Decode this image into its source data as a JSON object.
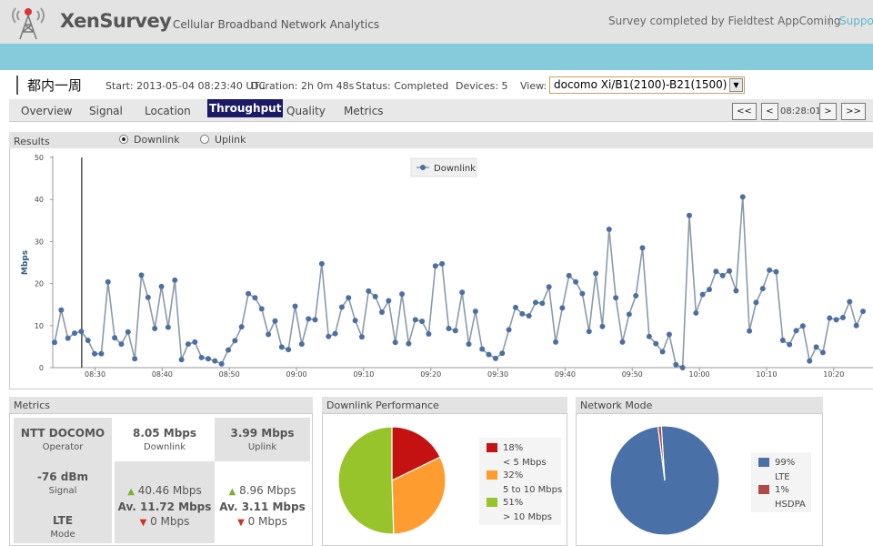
{
  "header": {
    "title": "XenSurvey",
    "subtitle": "Cellular Broadband Network Analytics",
    "survey_by": "Survey completed by Fieldtest AppComing",
    "support": "Support"
  },
  "info": {
    "survey_name": "都内一周",
    "start": "Start: 2013-05-04 08:23:40 UTC",
    "duration": "Duration: 2h 0m 48s",
    "status": "Status: Completed",
    "devices": "Devices: 5",
    "view_label": "View:",
    "view_value": "docomo Xi/B1(2100)-B21(1500)"
  },
  "tabs": {
    "overview": "Overview",
    "signal": "Signal",
    "location": "Location",
    "throughput": "Throughput",
    "quality": "Quality",
    "metrics": "Metrics"
  },
  "nav": {
    "first": "<<",
    "prev": "<",
    "time": "08:28:01",
    "next": ">",
    "last": ">>"
  },
  "results": {
    "label": "Results",
    "downlink": "Downlink",
    "uplink": "Uplink",
    "selected": "downlink"
  },
  "chart_data": {
    "type": "line",
    "ylabel": "Mbps",
    "ylim": [
      0,
      50
    ],
    "yticks": [
      0,
      10,
      20,
      30,
      40,
      50
    ],
    "xlim_minutes": [
      23.7,
      144.5
    ],
    "xticks": [
      "08:30",
      "08:40",
      "08:50",
      "09:00",
      "09:10",
      "09:20",
      "09:30",
      "09:40",
      "09:50",
      "10:00",
      "10:10",
      "10:20"
    ],
    "cursor": "08:28:01",
    "legend": "top-center",
    "series": [
      {
        "name": "Downlink",
        "color": "#4a6fa5",
        "values": [
          6,
          13.7,
          7,
          8.2,
          8.6,
          6.5,
          3.3,
          3.3,
          20.4,
          7.1,
          5.6,
          8.5,
          2.1,
          22,
          16.7,
          9.3,
          19.3,
          9.6,
          20.8,
          1.9,
          5.6,
          6.1,
          2.4,
          2.1,
          1.6,
          0.9,
          4.2,
          6.4,
          9.7,
          17.6,
          16.6,
          14,
          7.9,
          11.1,
          4.9,
          4.3,
          14.6,
          5.6,
          11.6,
          11.4,
          24.7,
          7.4,
          8.1,
          14.4,
          16.6,
          11.2,
          7.3,
          18.2,
          16.9,
          13.2,
          15.9,
          6,
          17.5,
          5.7,
          11.4,
          11,
          8,
          24.2,
          24.7,
          9.3,
          8.8,
          17.9,
          5.6,
          13.4,
          4.4,
          3.1,
          2.2,
          3.4,
          9,
          14.3,
          12.8,
          12.3,
          15.5,
          15.3,
          19.2,
          6.1,
          14.2,
          21.9,
          20.4,
          17.6,
          8.6,
          22.4,
          9.8,
          32.9,
          16.6,
          6.1,
          12.7,
          17.1,
          28.5,
          7.4,
          5.7,
          3.8,
          7.9,
          0.7,
          0,
          36.2,
          13,
          17.4,
          18.6,
          22.9,
          21.9,
          23,
          18.3,
          40.6,
          8.7,
          15.5,
          18.8,
          23.2,
          22.8,
          6.5,
          5.5,
          8.8,
          9.9,
          1.6,
          4.9,
          3.6,
          11.8,
          11.4,
          11.9,
          15.7,
          10,
          13.4
        ]
      }
    ]
  },
  "metrics": {
    "label": "Metrics",
    "operator": "NTT DOCOMO",
    "operator_lbl": "Operator",
    "signal": "-76 dBm",
    "signal_lbl": "Signal",
    "mode": "LTE",
    "mode_lbl": "Mode",
    "downlink": "8.05 Mbps",
    "downlink_lbl": "Downlink",
    "uplink": "3.99 Mbps",
    "uplink_lbl": "Uplink",
    "dl_max": "40.46 Mbps",
    "dl_avg": "Av. 11.72 Mbps",
    "dl_min": "0 Mbps",
    "ul_max": "8.96 Mbps",
    "ul_avg": "Av. 3.11 Mbps",
    "ul_min": "0 Mbps"
  },
  "downlink_perf": {
    "label": "Downlink Performance",
    "slices": [
      {
        "value": 18,
        "pct": "18%",
        "name": "< 5 Mbps",
        "color": "#c41212"
      },
      {
        "value": 32,
        "pct": "32%",
        "name": "5 to 10 Mbps",
        "color": "#ff9c2f"
      },
      {
        "value": 51,
        "pct": "51%",
        "name": "> 10 Mbps",
        "color": "#97c42a"
      }
    ]
  },
  "network_mode": {
    "label": "Network Mode",
    "slices": [
      {
        "value": 99,
        "pct": "99%",
        "name": "LTE",
        "color": "#4a70a8"
      },
      {
        "value": 1,
        "pct": "1%",
        "name": "HSDPA",
        "color": "#b04848"
      }
    ]
  }
}
